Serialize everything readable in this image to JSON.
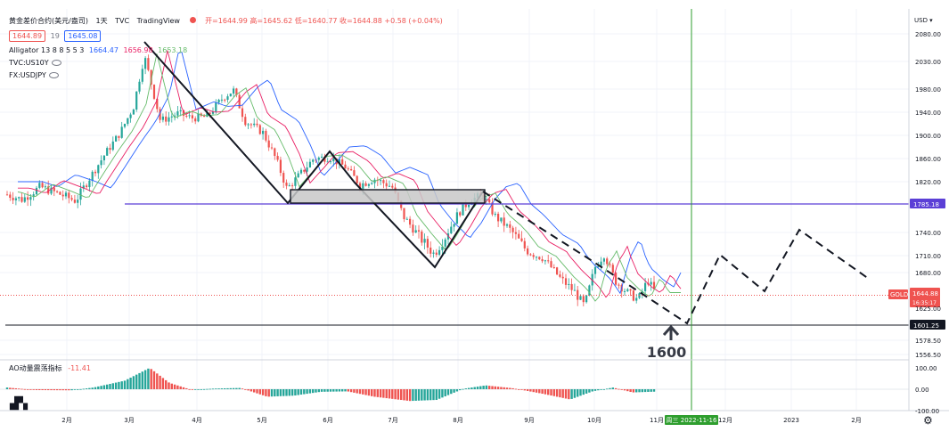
{
  "header": {
    "symbol": "黄金差价合约(美元/盎司)",
    "interval": "1天",
    "source": "TVC",
    "platform": "TradingView",
    "ohlc": "开=1644.99 高=1645.62 低=1640.77 收=1644.88 +0.58 (+0.04%)",
    "sell_price": "1644.89",
    "spread": "19",
    "buy_price": "1645.08",
    "indicator_label": "Alligator 13 8 8 5 5 3",
    "indicator_values": [
      "1664.47",
      "1656.98",
      "1653.18"
    ],
    "overlays": [
      "TVC:US10Y",
      "FX:USDJPY"
    ]
  },
  "colors": {
    "up": "#26a69a",
    "down": "#ef5350",
    "jaw": "#2962ff",
    "teeth": "#e91e63",
    "lips": "#66bb6a",
    "support": "#5b3fd6",
    "vline": "#2e9e2e",
    "dotted": "#ef5350"
  },
  "chart_data": {
    "type": "candlestick",
    "currency": "USD",
    "y_ticks": [
      2080,
      2030,
      1980,
      1940,
      1900,
      1860,
      1820,
      1740,
      1710,
      1680,
      1578.5,
      1556.5
    ],
    "y_range": [
      1540,
      2090
    ],
    "x_ticks": [
      "2月",
      "3月",
      "4月",
      "5月",
      "6月",
      "7月",
      "8月",
      "9月",
      "10月",
      "11月",
      "12月",
      "2023",
      "2月"
    ],
    "price_tags": {
      "level_line": "1785.18",
      "gold_label": "GOLD",
      "last_price": "1644.88",
      "countdown": "16:35:17",
      "support_level": "1601.25",
      "hidden_tick": "1625.00"
    },
    "date_marker": "周三 2022-11-16",
    "annotation": "1600",
    "candle_anchors": [
      {
        "x": 8,
        "close": 1800
      },
      {
        "x": 25,
        "close": 1792
      },
      {
        "x": 45,
        "close": 1812
      },
      {
        "x": 68,
        "close": 1800
      },
      {
        "x": 85,
        "close": 1790
      },
      {
        "x": 100,
        "close": 1825
      },
      {
        "x": 118,
        "close": 1868
      },
      {
        "x": 135,
        "close": 1905
      },
      {
        "x": 150,
        "close": 1950
      },
      {
        "x": 162,
        "close": 2040
      },
      {
        "x": 170,
        "close": 1988
      },
      {
        "x": 180,
        "close": 1925
      },
      {
        "x": 200,
        "close": 1938
      },
      {
        "x": 215,
        "close": 1930
      },
      {
        "x": 232,
        "close": 1932
      },
      {
        "x": 250,
        "close": 1965
      },
      {
        "x": 262,
        "close": 1978
      },
      {
        "x": 275,
        "close": 1925
      },
      {
        "x": 295,
        "close": 1905
      },
      {
        "x": 310,
        "close": 1858
      },
      {
        "x": 322,
        "close": 1808
      },
      {
        "x": 338,
        "close": 1835
      },
      {
        "x": 352,
        "close": 1860
      },
      {
        "x": 370,
        "close": 1862
      },
      {
        "x": 388,
        "close": 1845
      },
      {
        "x": 404,
        "close": 1815
      },
      {
        "x": 420,
        "close": 1825
      },
      {
        "x": 440,
        "close": 1812
      },
      {
        "x": 453,
        "close": 1765
      },
      {
        "x": 470,
        "close": 1735
      },
      {
        "x": 487,
        "close": 1712
      },
      {
        "x": 500,
        "close": 1735
      },
      {
        "x": 515,
        "close": 1772
      },
      {
        "x": 528,
        "close": 1792
      },
      {
        "x": 542,
        "close": 1798
      },
      {
        "x": 556,
        "close": 1765
      },
      {
        "x": 570,
        "close": 1748
      },
      {
        "x": 590,
        "close": 1718
      },
      {
        "x": 610,
        "close": 1705
      },
      {
        "x": 628,
        "close": 1672
      },
      {
        "x": 645,
        "close": 1650
      },
      {
        "x": 656,
        "close": 1628
      },
      {
        "x": 668,
        "close": 1690
      },
      {
        "x": 678,
        "close": 1712
      },
      {
        "x": 690,
        "close": 1668
      },
      {
        "x": 705,
        "close": 1648
      },
      {
        "x": 716,
        "close": 1638
      },
      {
        "x": 727,
        "close": 1668
      },
      {
        "x": 737,
        "close": 1645
      }
    ],
    "ao_anchors": [
      {
        "x": 8,
        "v": 8
      },
      {
        "x": 40,
        "v": -4
      },
      {
        "x": 80,
        "v": -5
      },
      {
        "x": 105,
        "v": 8
      },
      {
        "x": 140,
        "v": 40
      },
      {
        "x": 168,
        "v": 100
      },
      {
        "x": 190,
        "v": 30
      },
      {
        "x": 215,
        "v": -3
      },
      {
        "x": 240,
        "v": 3
      },
      {
        "x": 270,
        "v": 6
      },
      {
        "x": 300,
        "v": -35
      },
      {
        "x": 330,
        "v": -30
      },
      {
        "x": 360,
        "v": -12
      },
      {
        "x": 390,
        "v": -10
      },
      {
        "x": 420,
        "v": -35
      },
      {
        "x": 460,
        "v": -55
      },
      {
        "x": 490,
        "v": -50
      },
      {
        "x": 520,
        "v": 2
      },
      {
        "x": 545,
        "v": 18
      },
      {
        "x": 575,
        "v": 5
      },
      {
        "x": 610,
        "v": -22
      },
      {
        "x": 640,
        "v": -48
      },
      {
        "x": 665,
        "v": -10
      },
      {
        "x": 688,
        "v": 8
      },
      {
        "x": 710,
        "v": -15
      },
      {
        "x": 737,
        "v": -11
      }
    ],
    "ao_label": "AO动量震荡指标",
    "ao_value": "-11.41",
    "ao_ticks": [
      "100.00",
      "0.00",
      "-100.00"
    ]
  }
}
